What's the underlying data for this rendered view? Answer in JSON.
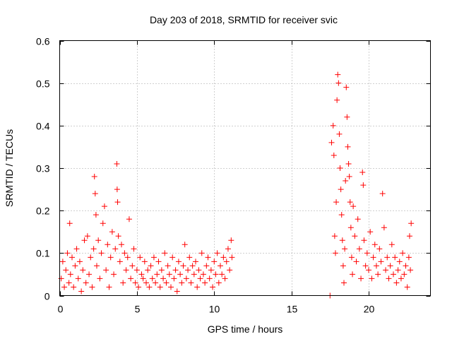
{
  "chart_data": {
    "type": "scatter",
    "title": "Day 203 of 2018, SRMTID for receiver svic",
    "xlabel": "GPS time / hours",
    "ylabel": "SRMTID / TECUs",
    "xlim": [
      0,
      24
    ],
    "ylim": [
      0,
      0.6
    ],
    "xticks": [
      0,
      5,
      10,
      15,
      20
    ],
    "xtick_labels": [
      "0",
      "5",
      "10",
      "15",
      "20"
    ],
    "yticks": [
      0,
      0.1,
      0.2,
      0.3,
      0.4,
      0.5,
      0.6
    ],
    "ytick_labels": [
      "0",
      "0.1",
      "0.2",
      "0.3",
      "0.4",
      "0.5",
      "0.6"
    ],
    "grid": true,
    "marker": "+",
    "color": "#ff0000",
    "series": [
      {
        "name": "SRMTID",
        "points": [
          [
            0.1,
            0.04
          ],
          [
            0.2,
            0.08
          ],
          [
            0.3,
            0.02
          ],
          [
            0.4,
            0.06
          ],
          [
            0.5,
            0.1
          ],
          [
            0.6,
            0.03
          ],
          [
            0.65,
            0.17
          ],
          [
            0.7,
            0.05
          ],
          [
            0.8,
            0.09
          ],
          [
            0.9,
            0.02
          ],
          [
            1.0,
            0.07
          ],
          [
            1.1,
            0.11
          ],
          [
            1.2,
            0.04
          ],
          [
            1.3,
            0.08
          ],
          [
            1.4,
            0.01
          ],
          [
            1.5,
            0.06
          ],
          [
            1.6,
            0.13
          ],
          [
            1.7,
            0.03
          ],
          [
            1.8,
            0.14
          ],
          [
            1.9,
            0.05
          ],
          [
            2.0,
            0.09
          ],
          [
            2.1,
            0.02
          ],
          [
            2.2,
            0.11
          ],
          [
            2.25,
            0.28
          ],
          [
            2.3,
            0.24
          ],
          [
            2.35,
            0.19
          ],
          [
            2.4,
            0.07
          ],
          [
            2.5,
            0.13
          ],
          [
            2.6,
            0.04
          ],
          [
            2.7,
            0.1
          ],
          [
            2.8,
            0.17
          ],
          [
            2.9,
            0.21
          ],
          [
            3.0,
            0.06
          ],
          [
            3.1,
            0.12
          ],
          [
            3.2,
            0.02
          ],
          [
            3.3,
            0.09
          ],
          [
            3.4,
            0.15
          ],
          [
            3.5,
            0.05
          ],
          [
            3.6,
            0.11
          ],
          [
            3.7,
            0.31
          ],
          [
            3.72,
            0.25
          ],
          [
            3.75,
            0.22
          ],
          [
            3.8,
            0.14
          ],
          [
            3.9,
            0.08
          ],
          [
            4.0,
            0.12
          ],
          [
            4.1,
            0.03
          ],
          [
            4.2,
            0.1
          ],
          [
            4.3,
            0.06
          ],
          [
            4.4,
            0.09
          ],
          [
            4.5,
            0.18
          ],
          [
            4.6,
            0.04
          ],
          [
            4.7,
            0.07
          ],
          [
            4.8,
            0.11
          ],
          [
            4.9,
            0.03
          ],
          [
            5.0,
            0.06
          ],
          [
            5.1,
            0.02
          ],
          [
            5.2,
            0.09
          ],
          [
            5.3,
            0.05
          ],
          [
            5.4,
            0.04
          ],
          [
            5.5,
            0.08
          ],
          [
            5.6,
            0.03
          ],
          [
            5.7,
            0.06
          ],
          [
            5.8,
            0.02
          ],
          [
            5.9,
            0.07
          ],
          [
            6.0,
            0.04
          ],
          [
            6.1,
            0.09
          ],
          [
            6.2,
            0.03
          ],
          [
            6.3,
            0.05
          ],
          [
            6.4,
            0.08
          ],
          [
            6.5,
            0.02
          ],
          [
            6.6,
            0.06
          ],
          [
            6.7,
            0.04
          ],
          [
            6.8,
            0.1
          ],
          [
            6.9,
            0.03
          ],
          [
            7.0,
            0.07
          ],
          [
            7.1,
            0.05
          ],
          [
            7.2,
            0.02
          ],
          [
            7.3,
            0.09
          ],
          [
            7.4,
            0.04
          ],
          [
            7.5,
            0.06
          ],
          [
            7.6,
            0.01
          ],
          [
            7.7,
            0.08
          ],
          [
            7.8,
            0.05
          ],
          [
            7.9,
            0.03
          ],
          [
            8.0,
            0.07
          ],
          [
            8.1,
            0.12
          ],
          [
            8.2,
            0.04
          ],
          [
            8.3,
            0.06
          ],
          [
            8.4,
            0.09
          ],
          [
            8.5,
            0.03
          ],
          [
            8.6,
            0.07
          ],
          [
            8.7,
            0.05
          ],
          [
            8.8,
            0.08
          ],
          [
            8.9,
            0.02
          ],
          [
            9.0,
            0.06
          ],
          [
            9.1,
            0.04
          ],
          [
            9.2,
            0.1
          ],
          [
            9.3,
            0.05
          ],
          [
            9.4,
            0.03
          ],
          [
            9.5,
            0.07
          ],
          [
            9.6,
            0.09
          ],
          [
            9.7,
            0.04
          ],
          [
            9.8,
            0.06
          ],
          [
            9.9,
            0.02
          ],
          [
            10.0,
            0.08
          ],
          [
            10.1,
            0.05
          ],
          [
            10.2,
            0.1
          ],
          [
            10.3,
            0.03
          ],
          [
            10.4,
            0.07
          ],
          [
            10.5,
            0.05
          ],
          [
            10.6,
            0.09
          ],
          [
            10.7,
            0.04
          ],
          [
            10.8,
            0.08
          ],
          [
            10.9,
            0.11
          ],
          [
            11.0,
            0.06
          ],
          [
            11.1,
            0.13
          ],
          [
            11.15,
            0.09
          ],
          [
            17.5,
            0.0
          ],
          [
            17.6,
            0.36
          ],
          [
            17.7,
            0.4
          ],
          [
            17.75,
            0.33
          ],
          [
            17.8,
            0.14
          ],
          [
            17.85,
            0.1
          ],
          [
            17.9,
            0.22
          ],
          [
            17.95,
            0.46
          ],
          [
            18.0,
            0.52
          ],
          [
            18.05,
            0.5
          ],
          [
            18.1,
            0.38
          ],
          [
            18.15,
            0.3
          ],
          [
            18.2,
            0.25
          ],
          [
            18.25,
            0.19
          ],
          [
            18.3,
            0.13
          ],
          [
            18.35,
            0.07
          ],
          [
            18.4,
            0.03
          ],
          [
            18.45,
            0.11
          ],
          [
            18.5,
            0.27
          ],
          [
            18.55,
            0.49
          ],
          [
            18.6,
            0.42
          ],
          [
            18.65,
            0.35
          ],
          [
            18.7,
            0.31
          ],
          [
            18.75,
            0.28
          ],
          [
            18.8,
            0.22
          ],
          [
            18.85,
            0.16
          ],
          [
            18.9,
            0.09
          ],
          [
            18.95,
            0.05
          ],
          [
            19.0,
            0.21
          ],
          [
            19.1,
            0.14
          ],
          [
            19.2,
            0.08
          ],
          [
            19.3,
            0.18
          ],
          [
            19.4,
            0.11
          ],
          [
            19.5,
            0.04
          ],
          [
            19.6,
            0.29
          ],
          [
            19.65,
            0.26
          ],
          [
            19.7,
            0.13
          ],
          [
            19.8,
            0.07
          ],
          [
            19.9,
            0.1
          ],
          [
            20.0,
            0.06
          ],
          [
            20.1,
            0.15
          ],
          [
            20.2,
            0.04
          ],
          [
            20.3,
            0.09
          ],
          [
            20.4,
            0.12
          ],
          [
            20.5,
            0.07
          ],
          [
            20.6,
            0.05
          ],
          [
            20.7,
            0.11
          ],
          [
            20.8,
            0.08
          ],
          [
            20.9,
            0.24
          ],
          [
            21.0,
            0.16
          ],
          [
            21.1,
            0.06
          ],
          [
            21.2,
            0.09
          ],
          [
            21.3,
            0.04
          ],
          [
            21.4,
            0.07
          ],
          [
            21.5,
            0.12
          ],
          [
            21.6,
            0.05
          ],
          [
            21.7,
            0.09
          ],
          [
            21.8,
            0.03
          ],
          [
            21.9,
            0.06
          ],
          [
            22.0,
            0.08
          ],
          [
            22.1,
            0.04
          ],
          [
            22.2,
            0.1
          ],
          [
            22.3,
            0.05
          ],
          [
            22.4,
            0.07
          ],
          [
            22.5,
            0.02
          ],
          [
            22.6,
            0.09
          ],
          [
            22.65,
            0.14
          ],
          [
            22.7,
            0.06
          ],
          [
            22.75,
            0.17
          ]
        ]
      }
    ]
  }
}
